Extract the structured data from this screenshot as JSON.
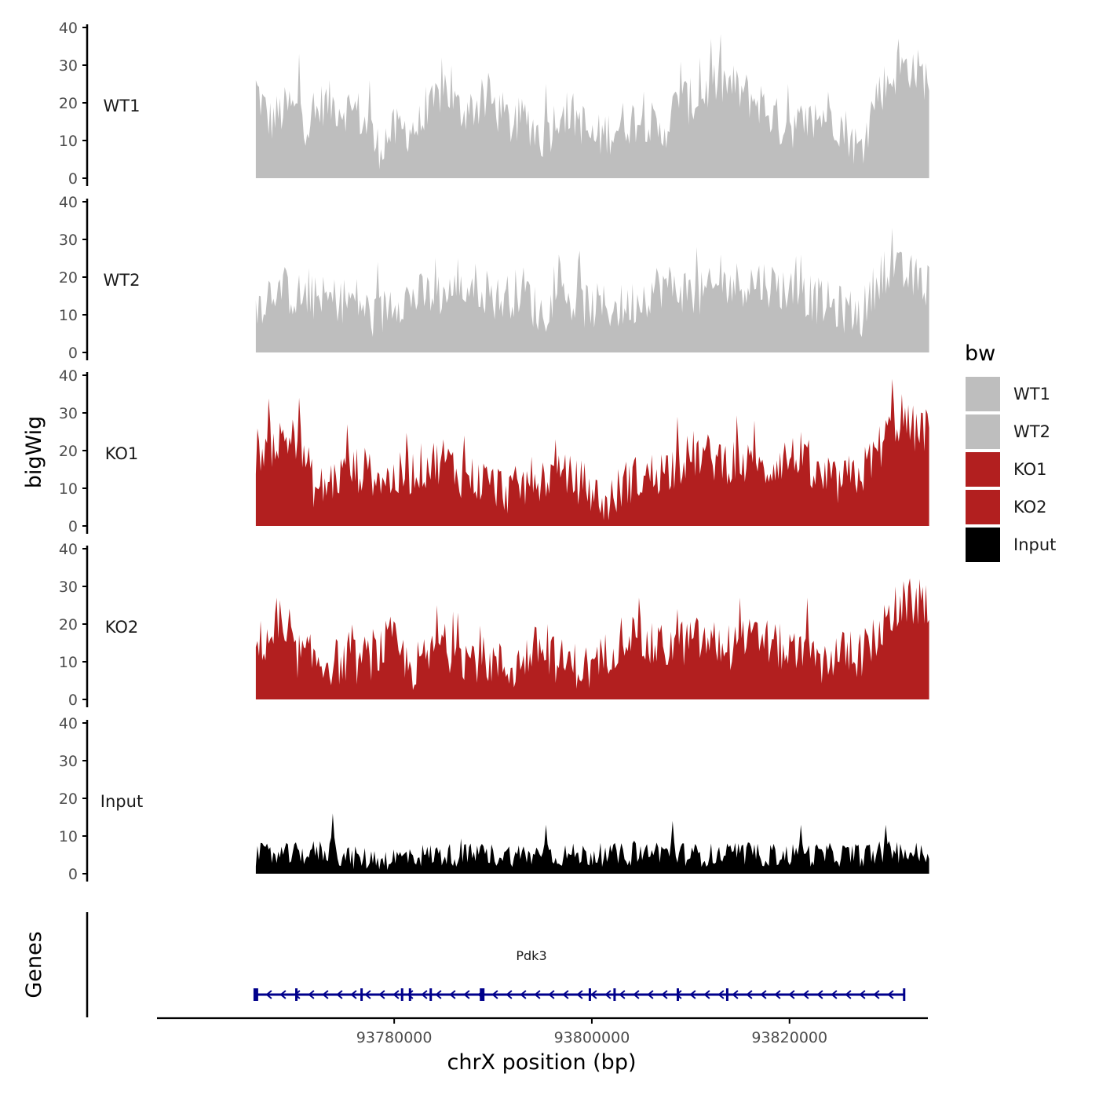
{
  "chart_data": {
    "type": "area",
    "title": "",
    "ylabel": "bigWig",
    "xlabel": "chrX position (bp)",
    "genes_label": "Genes",
    "ylim": [
      0,
      40
    ],
    "yticks": [
      "0",
      "10",
      "20",
      "30",
      "40"
    ],
    "xlim": [
      93756000,
      93834000
    ],
    "xticks": [
      {
        "value": 93780000,
        "label": "93780000"
      },
      {
        "value": 93800000,
        "label": "93800000"
      },
      {
        "value": 93820000,
        "label": "93820000"
      }
    ],
    "region": [
      93766000,
      93835000
    ],
    "legend": {
      "title": "bw",
      "entries": [
        {
          "name": "WT1",
          "color": "#bebebe"
        },
        {
          "name": "WT2",
          "color": "#bebebe"
        },
        {
          "name": "KO1",
          "color": "#b21f1f"
        },
        {
          "name": "KO2",
          "color": "#b21f1f"
        },
        {
          "name": "Input",
          "color": "#000000"
        }
      ]
    },
    "series": [
      {
        "name": "WT1",
        "color": "#bebebe",
        "anchors": [
          [
            0,
            24
          ],
          [
            0.02,
            15
          ],
          [
            0.05,
            19
          ],
          [
            0.08,
            14
          ],
          [
            0.1,
            20
          ],
          [
            0.15,
            18
          ],
          [
            0.18,
            8
          ],
          [
            0.2,
            12
          ],
          [
            0.25,
            14
          ],
          [
            0.28,
            25
          ],
          [
            0.3,
            18
          ],
          [
            0.35,
            20
          ],
          [
            0.38,
            14
          ],
          [
            0.4,
            16
          ],
          [
            0.43,
            10
          ],
          [
            0.45,
            18
          ],
          [
            0.48,
            16
          ],
          [
            0.5,
            10
          ],
          [
            0.55,
            15
          ],
          [
            0.58,
            16
          ],
          [
            0.6,
            11
          ],
          [
            0.63,
            21
          ],
          [
            0.65,
            20
          ],
          [
            0.68,
            25
          ],
          [
            0.7,
            25
          ],
          [
            0.72,
            23
          ],
          [
            0.75,
            20
          ],
          [
            0.78,
            14
          ],
          [
            0.8,
            14
          ],
          [
            0.83,
            15
          ],
          [
            0.85,
            18
          ],
          [
            0.88,
            12
          ],
          [
            0.9,
            6
          ],
          [
            0.92,
            22
          ],
          [
            0.95,
            28
          ],
          [
            0.97,
            30
          ],
          [
            1,
            26
          ]
        ]
      },
      {
        "name": "WT2",
        "color": "#bebebe",
        "anchors": [
          [
            0,
            12
          ],
          [
            0.03,
            18
          ],
          [
            0.06,
            15
          ],
          [
            0.1,
            14
          ],
          [
            0.15,
            14
          ],
          [
            0.18,
            8
          ],
          [
            0.2,
            14
          ],
          [
            0.25,
            15
          ],
          [
            0.3,
            16
          ],
          [
            0.33,
            18
          ],
          [
            0.36,
            14
          ],
          [
            0.4,
            17
          ],
          [
            0.42,
            10
          ],
          [
            0.45,
            14
          ],
          [
            0.48,
            13
          ],
          [
            0.5,
            12
          ],
          [
            0.55,
            12
          ],
          [
            0.6,
            18
          ],
          [
            0.63,
            17
          ],
          [
            0.66,
            15
          ],
          [
            0.7,
            18
          ],
          [
            0.75,
            19
          ],
          [
            0.8,
            16
          ],
          [
            0.83,
            14
          ],
          [
            0.86,
            12
          ],
          [
            0.9,
            10
          ],
          [
            0.93,
            22
          ],
          [
            0.95,
            21
          ],
          [
            0.97,
            20
          ],
          [
            1,
            18
          ]
        ]
      },
      {
        "name": "KO1",
        "color": "#b21f1f",
        "anchors": [
          [
            0,
            20
          ],
          [
            0.03,
            22
          ],
          [
            0.06,
            24
          ],
          [
            0.09,
            9
          ],
          [
            0.12,
            13
          ],
          [
            0.15,
            15
          ],
          [
            0.18,
            14
          ],
          [
            0.2,
            12
          ],
          [
            0.25,
            16
          ],
          [
            0.28,
            18
          ],
          [
            0.3,
            14
          ],
          [
            0.35,
            11
          ],
          [
            0.38,
            9
          ],
          [
            0.42,
            13
          ],
          [
            0.45,
            13
          ],
          [
            0.48,
            12
          ],
          [
            0.5,
            9
          ],
          [
            0.52,
            5
          ],
          [
            0.55,
            12
          ],
          [
            0.58,
            13
          ],
          [
            0.62,
            16
          ],
          [
            0.65,
            19
          ],
          [
            0.68,
            18
          ],
          [
            0.72,
            17
          ],
          [
            0.75,
            14
          ],
          [
            0.78,
            18
          ],
          [
            0.8,
            18
          ],
          [
            0.83,
            13
          ],
          [
            0.86,
            11
          ],
          [
            0.9,
            14
          ],
          [
            0.93,
            22
          ],
          [
            0.95,
            28
          ],
          [
            0.97,
            26
          ],
          [
            1,
            25
          ]
        ]
      },
      {
        "name": "KO2",
        "color": "#b21f1f",
        "anchors": [
          [
            0,
            14
          ],
          [
            0.03,
            18
          ],
          [
            0.06,
            12
          ],
          [
            0.1,
            10
          ],
          [
            0.15,
            10
          ],
          [
            0.18,
            12
          ],
          [
            0.2,
            16
          ],
          [
            0.23,
            8
          ],
          [
            0.28,
            14
          ],
          [
            0.3,
            12
          ],
          [
            0.35,
            10
          ],
          [
            0.38,
            8
          ],
          [
            0.42,
            14
          ],
          [
            0.45,
            10
          ],
          [
            0.48,
            9
          ],
          [
            0.5,
            8
          ],
          [
            0.55,
            18
          ],
          [
            0.58,
            14
          ],
          [
            0.62,
            14
          ],
          [
            0.65,
            16
          ],
          [
            0.7,
            14
          ],
          [
            0.75,
            16
          ],
          [
            0.8,
            12
          ],
          [
            0.83,
            9
          ],
          [
            0.86,
            12
          ],
          [
            0.9,
            12
          ],
          [
            0.93,
            18
          ],
          [
            0.95,
            24
          ],
          [
            0.97,
            26
          ],
          [
            1,
            25
          ]
        ]
      },
      {
        "name": "Input",
        "color": "#000000",
        "anchors": [
          [
            0,
            5
          ],
          [
            0.05,
            5
          ],
          [
            0.1,
            6
          ],
          [
            0.15,
            4
          ],
          [
            0.2,
            4
          ],
          [
            0.25,
            5
          ],
          [
            0.3,
            5
          ],
          [
            0.35,
            5
          ],
          [
            0.4,
            5
          ],
          [
            0.45,
            5
          ],
          [
            0.5,
            5
          ],
          [
            0.55,
            5
          ],
          [
            0.6,
            6
          ],
          [
            0.65,
            5
          ],
          [
            0.7,
            5
          ],
          [
            0.75,
            5
          ],
          [
            0.8,
            5
          ],
          [
            0.85,
            5
          ],
          [
            0.9,
            5
          ],
          [
            0.95,
            6
          ],
          [
            1,
            5
          ]
        ]
      }
    ],
    "peaks": [
      [
        [
          0.065,
          33
        ],
        [
          0.17,
          26
        ],
        [
          0.29,
          30
        ],
        [
          0.345,
          28
        ],
        [
          0.43,
          25
        ],
        [
          0.63,
          31
        ],
        [
          0.66,
          32
        ],
        [
          0.675,
          37
        ],
        [
          0.79,
          25
        ],
        [
          0.955,
          37
        ]
      ],
      [
        [
          0.18,
          24
        ],
        [
          0.3,
          25
        ],
        [
          0.45,
          26
        ],
        [
          0.48,
          27
        ],
        [
          0.655,
          28
        ],
        [
          0.69,
          26
        ],
        [
          0.81,
          26
        ],
        [
          0.945,
          33
        ]
      ],
      [
        [
          0.065,
          34
        ],
        [
          0.135,
          27
        ],
        [
          0.31,
          24
        ],
        [
          0.445,
          23
        ],
        [
          0.625,
          29
        ],
        [
          0.74,
          28
        ],
        [
          0.81,
          25
        ],
        [
          0.945,
          39
        ],
        [
          0.96,
          35
        ]
      ],
      [
        [
          0.03,
          27
        ],
        [
          0.27,
          25
        ],
        [
          0.3,
          23
        ],
        [
          0.57,
          27
        ],
        [
          0.625,
          24
        ],
        [
          0.72,
          27
        ],
        [
          0.82,
          27
        ],
        [
          0.95,
          30
        ],
        [
          0.97,
          30
        ]
      ],
      [
        [
          0.115,
          16
        ],
        [
          0.43,
          13
        ],
        [
          0.62,
          14
        ],
        [
          0.81,
          13
        ],
        [
          0.935,
          13
        ]
      ]
    ],
    "gene": {
      "name": "Pdk3",
      "strand": "-",
      "start": 93766000,
      "end": 93831600,
      "exons": [
        93766000,
        93770100,
        93776700,
        93780800,
        93781600,
        93783700,
        93788900,
        93799800,
        93802300,
        93808700,
        93813700,
        93831600
      ]
    }
  }
}
